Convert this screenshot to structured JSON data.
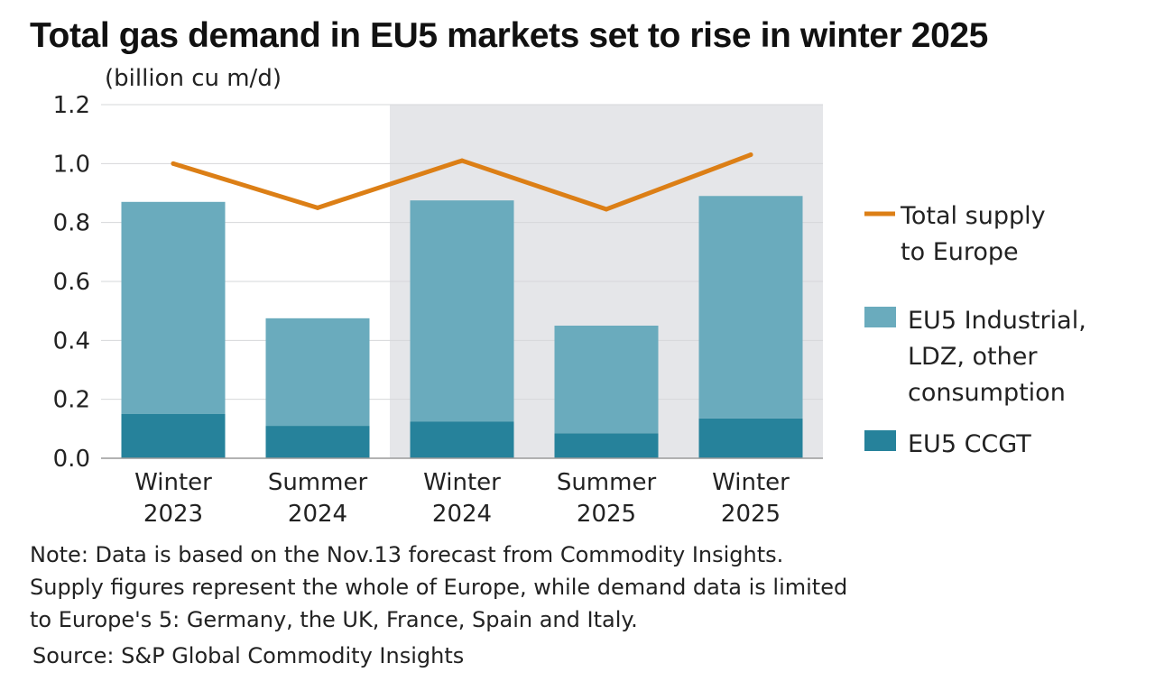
{
  "title": "Total gas demand in EU5 markets set to rise in winter 2025",
  "unit_label": "(billion cu m/d)",
  "chart_data": {
    "type": "bar",
    "stacked": true,
    "categories": [
      [
        "Winter",
        "2023"
      ],
      [
        "Summer",
        "2024"
      ],
      [
        "Winter",
        "2024"
      ],
      [
        "Summer",
        "2025"
      ],
      [
        "Winter",
        "2025"
      ]
    ],
    "series": [
      {
        "name": "EU5 CCGT",
        "kind": "bar",
        "color": "#26829b",
        "values": [
          0.15,
          0.11,
          0.125,
          0.085,
          0.135
        ]
      },
      {
        "name": "EU5 Industrial, LDZ, other consumption",
        "legend_lines": [
          "EU5 Industrial,",
          "LDZ, other",
          "consumption"
        ],
        "kind": "bar",
        "color": "#6aabbd",
        "values": [
          0.72,
          0.365,
          0.75,
          0.365,
          0.755
        ]
      },
      {
        "name": "Total supply to Europe",
        "legend_lines": [
          "Total supply",
          "to Europe"
        ],
        "kind": "line",
        "color": "#dc7f16",
        "values": [
          1.0,
          0.85,
          1.01,
          0.845,
          1.03
        ]
      }
    ],
    "ylim": [
      0,
      1.2
    ],
    "yticks": [
      "0.0",
      "0.2",
      "0.4",
      "0.6",
      "0.8",
      "1.0",
      "1.2"
    ],
    "grid": true,
    "shaded_categories": [
      2,
      3,
      4
    ],
    "shade_color": "#e5e6e9",
    "legend_position": "right"
  },
  "note_lines": [
    "Note: Data is based on the Nov.13 forecast from Commodity Insights.",
    "Supply figures represent the whole of Europe, while demand data is limited",
    "to Europe's 5: Germany, the UK, France, Spain and Italy."
  ],
  "source": "Source: S&P Global Commodity Insights"
}
